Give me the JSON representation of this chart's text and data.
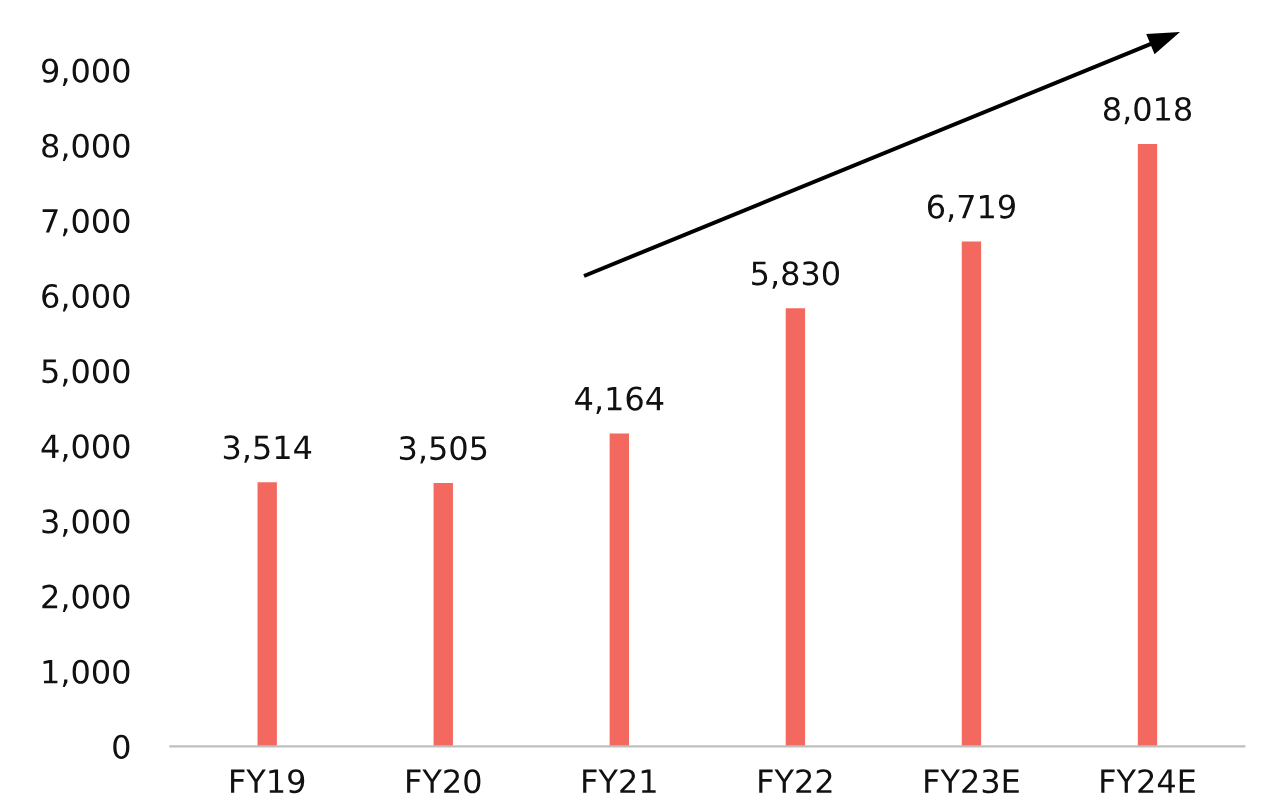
{
  "chart_data": {
    "type": "bar",
    "categories": [
      "FY19",
      "FY20",
      "FY21",
      "FY22",
      "FY23E",
      "FY24E"
    ],
    "values": [
      3514,
      3505,
      4164,
      5830,
      6719,
      8018
    ],
    "color": "#f4695f",
    "value_labels": [
      "3,514",
      "3,505",
      "4,164",
      "5,830",
      "6,719",
      "8,018"
    ],
    "ylim": [
      0,
      9000
    ],
    "yticks": [
      {
        "value": 0,
        "label": "0"
      },
      {
        "value": 1000,
        "label": "1,000"
      },
      {
        "value": 2000,
        "label": "2,000"
      },
      {
        "value": 3000,
        "label": "3,000"
      },
      {
        "value": 4000,
        "label": "4,000"
      },
      {
        "value": 5000,
        "label": "5,000"
      },
      {
        "value": 6000,
        "label": "6,000"
      },
      {
        "value": 7000,
        "label": "7,000"
      },
      {
        "value": 8000,
        "label": "8,000"
      },
      {
        "value": 9000,
        "label": "9,000"
      }
    ],
    "grid": false,
    "legend": false
  }
}
